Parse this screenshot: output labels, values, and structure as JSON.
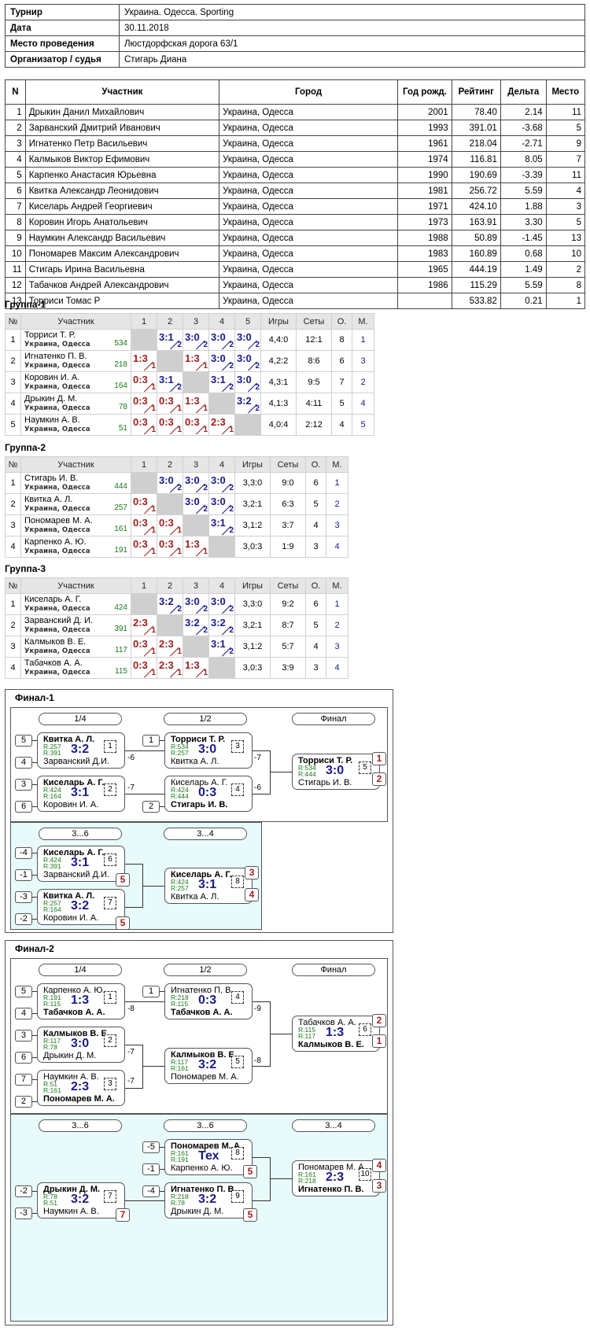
{
  "info": [
    {
      "k": "Турнир",
      "v": "Украина. Одесса. Sporting"
    },
    {
      "k": "Дата",
      "v": "30.11.2018"
    },
    {
      "k": "Место проведения",
      "v": "Люстдорфская дорога 63/1"
    },
    {
      "k": "Организатор / судья",
      "v": "Стигарь Диана"
    }
  ],
  "participants": {
    "headers": [
      "N",
      "Участник",
      "Город",
      "Год рожд.",
      "Рейтинг",
      "Дельта",
      "Место"
    ],
    "rows": [
      [
        "1",
        "Дрыкин Данил Михайлович",
        "Украина, Одесса",
        "2001",
        "78.40",
        "2.14",
        "11"
      ],
      [
        "2",
        "Зарванский Дмитрий Иванович",
        "Украина, Одесса",
        "1993",
        "391.01",
        "-3.68",
        "5"
      ],
      [
        "3",
        "Игнатенко Петр Васильевич",
        "Украина, Одесса",
        "1961",
        "218.04",
        "-2.71",
        "9"
      ],
      [
        "4",
        "Калмыков Виктор Ефимович",
        "Украина, Одесса",
        "1974",
        "116.81",
        "8.05",
        "7"
      ],
      [
        "5",
        "Карпенко Анастасия Юрьевна",
        "Украина, Одесса",
        "1990",
        "190.69",
        "-3.39",
        "11"
      ],
      [
        "6",
        "Квитка Александр Леонидович",
        "Украина, Одесса",
        "1981",
        "256.72",
        "5.59",
        "4"
      ],
      [
        "7",
        "Киселарь Андрей Георгиевич",
        "Украина, Одесса",
        "1971",
        "424.10",
        "1.88",
        "3"
      ],
      [
        "8",
        "Коровин Игорь Анатольевич",
        "Украина, Одесса",
        "1973",
        "163.91",
        "3.30",
        "5"
      ],
      [
        "9",
        "Наумкин Александр Васильевич",
        "Украина, Одесса",
        "1988",
        "50.89",
        "-1.45",
        "13"
      ],
      [
        "10",
        "Пономарев Максим Александрович",
        "Украина, Одесса",
        "1983",
        "160.89",
        "0.68",
        "10"
      ],
      [
        "11",
        "Стигарь Ирина Васильевна",
        "Украина, Одесса",
        "1965",
        "444.19",
        "1.49",
        "2"
      ],
      [
        "12",
        "Табачков Андрей Александрович",
        "Украина, Одесса",
        "1986",
        "115.29",
        "5.59",
        "8"
      ],
      [
        "13",
        "Торриси Томас Р",
        "Украина, Одесса",
        "",
        "533.82",
        "0.21",
        "1"
      ]
    ]
  },
  "groups": [
    {
      "title": "Группа-1",
      "headers": [
        "№",
        "Участник",
        "1",
        "2",
        "3",
        "4",
        "5",
        "Игры",
        "Сеты",
        "О.",
        "М."
      ],
      "rows": [
        {
          "n": "1",
          "name": "Торриси Т. Р.",
          "city": "Украина, Одесса",
          "rating": "534",
          "cells": [
            "x",
            "3:1|2|w",
            "3:0|2|w",
            "3:0|2|w",
            "3:0|2|w"
          ],
          "games": "4,4:0",
          "sets": "12:1",
          "pts": "8",
          "place": "1"
        },
        {
          "n": "2",
          "name": "Игнатенко П. В.",
          "city": "Украина, Одесса",
          "rating": "218",
          "cells": [
            "1:3|1|l",
            "x",
            "1:3|1|l",
            "3:0|2|w",
            "3:0|2|w"
          ],
          "games": "4,2:2",
          "sets": "8:6",
          "pts": "6",
          "place": "3"
        },
        {
          "n": "3",
          "name": "Коровин И. А.",
          "city": "Украина, Одесса",
          "rating": "164",
          "cells": [
            "0:3|1|l",
            "3:1|2|w",
            "x",
            "3:1|2|w",
            "3:0|2|w"
          ],
          "games": "4,3:1",
          "sets": "9:5",
          "pts": "7",
          "place": "2"
        },
        {
          "n": "4",
          "name": "Дрыкин Д. М.",
          "city": "Украина, Одесса",
          "rating": "78",
          "cells": [
            "0:3|1|l",
            "0:3|1|l",
            "1:3|1|l",
            "x",
            "3:2|2|w"
          ],
          "games": "4,1:3",
          "sets": "4:11",
          "pts": "5",
          "place": "4"
        },
        {
          "n": "5",
          "name": "Наумкин А. В.",
          "city": "Украина, Одесса",
          "rating": "51",
          "cells": [
            "0:3|1|l",
            "0:3|1|l",
            "0:3|1|l",
            "2:3|1|l",
            "x"
          ],
          "games": "4,0:4",
          "sets": "2:12",
          "pts": "4",
          "place": "5"
        }
      ]
    },
    {
      "title": "Группа-2",
      "headers": [
        "№",
        "Участник",
        "1",
        "2",
        "3",
        "4",
        "Игры",
        "Сеты",
        "О.",
        "М."
      ],
      "rows": [
        {
          "n": "1",
          "name": "Стигарь И. В.",
          "city": "Украина, Одесса",
          "rating": "444",
          "cells": [
            "x",
            "3:0|2|w",
            "3:0|2|w",
            "3:0|2|w"
          ],
          "games": "3,3:0",
          "sets": "9:0",
          "pts": "6",
          "place": "1"
        },
        {
          "n": "2",
          "name": "Квитка А. Л.",
          "city": "Украина, Одесса",
          "rating": "257",
          "cells": [
            "0:3|1|l",
            "x",
            "3:0|2|w",
            "3:0|2|w"
          ],
          "games": "3,2:1",
          "sets": "6:3",
          "pts": "5",
          "place": "2"
        },
        {
          "n": "3",
          "name": "Пономарев М. А.",
          "city": "Украина, Одесса",
          "rating": "161",
          "cells": [
            "0:3|1|l",
            "0:3|1|l",
            "x",
            "3:1|2|w"
          ],
          "games": "3,1:2",
          "sets": "3:7",
          "pts": "4",
          "place": "3"
        },
        {
          "n": "4",
          "name": "Карпенко А. Ю.",
          "city": "Украина, Одесса",
          "rating": "191",
          "cells": [
            "0:3|1|l",
            "0:3|1|l",
            "1:3|1|l",
            "x"
          ],
          "games": "3,0:3",
          "sets": "1:9",
          "pts": "3",
          "place": "4"
        }
      ]
    },
    {
      "title": "Группа-3",
      "headers": [
        "№",
        "Участник",
        "1",
        "2",
        "3",
        "4",
        "Игры",
        "Сеты",
        "О.",
        "М."
      ],
      "rows": [
        {
          "n": "1",
          "name": "Киселарь А. Г.",
          "city": "Украина, Одесса",
          "rating": "424",
          "cells": [
            "x",
            "3:2|2|w",
            "3:0|2|w",
            "3:0|2|w"
          ],
          "games": "3,3:0",
          "sets": "9:2",
          "pts": "6",
          "place": "1"
        },
        {
          "n": "2",
          "name": "Зарванский Д. И.",
          "city": "Украина, Одесса",
          "rating": "391",
          "cells": [
            "2:3|1|l",
            "x",
            "3:2|2|w",
            "3:2|2|w"
          ],
          "games": "3,2:1",
          "sets": "8:7",
          "pts": "5",
          "place": "2"
        },
        {
          "n": "3",
          "name": "Калмыков В. Е.",
          "city": "Украина, Одесса",
          "rating": "117",
          "cells": [
            "0:3|1|l",
            "2:3|1|l",
            "x",
            "3:1|2|w"
          ],
          "games": "3,1:2",
          "sets": "5:7",
          "pts": "4",
          "place": "3"
        },
        {
          "n": "4",
          "name": "Табачков А. А.",
          "city": "Украина, Одесса",
          "rating": "115",
          "cells": [
            "0:3|1|l",
            "2:3|1|l",
            "1:3|1|l",
            "x"
          ],
          "games": "3,0:3",
          "sets": "3:9",
          "pts": "3",
          "place": "4"
        }
      ]
    }
  ],
  "finals": [
    {
      "title": "Финал-1",
      "rounds_main": [
        "1/4",
        "1/2",
        "Финал"
      ],
      "rounds_cons": [
        "3...6",
        "3...4"
      ],
      "matches": [
        {
          "n1": "Квитка А. Л.",
          "b1": true,
          "r1": "R:257",
          "n2": "Зарванский Д.И.",
          "b2": false,
          "r2": "R:391",
          "score": "3:2",
          "num": "1"
        },
        {
          "n1": "Киселарь А. Г.",
          "b1": true,
          "r1": "R:424",
          "n2": "Коровин И. А.",
          "b2": false,
          "r2": "R:164",
          "score": "3:1",
          "num": "2"
        },
        {
          "n1": "Торриси Т. Р.",
          "b1": true,
          "r1": "R:534",
          "n2": "Квитка А. Л.",
          "b2": false,
          "r2": "R:257",
          "score": "3:0",
          "num": "3"
        },
        {
          "n1": "Киселарь А. Г.",
          "b1": false,
          "r1": "R:424",
          "n2": "Стигарь И. В.",
          "b2": true,
          "r2": "R:444",
          "score": "0:3",
          "num": "4"
        },
        {
          "n1": "Торриси Т. Р.",
          "b1": true,
          "r1": "R:534",
          "n2": "Стигарь И. В.",
          "b2": false,
          "r2": "R:444",
          "score": "3:0",
          "num": "5"
        },
        {
          "n1": "Киселарь А. Г.",
          "b1": true,
          "r1": "R:424",
          "n2": "Зарванский Д.И.",
          "b2": false,
          "r2": "R:391",
          "score": "3:1",
          "num": "6"
        },
        {
          "n1": "Квитка А. Л.",
          "b1": true,
          "r1": "R:257",
          "n2": "Коровин И. А.",
          "b2": false,
          "r2": "R:164",
          "score": "3:2",
          "num": "7"
        },
        {
          "n1": "Киселарь А. Г.",
          "b1": true,
          "r1": "R:424",
          "n2": "Квитка А. Л.",
          "b2": false,
          "r2": "R:257",
          "score": "3:1",
          "num": "8"
        }
      ],
      "seeds": [
        "5",
        "4",
        "3",
        "6",
        "1",
        "2",
        "-4",
        "-1",
        "-3",
        "-2"
      ],
      "losers": [
        "-6",
        "-7",
        "-7",
        "-6"
      ],
      "places": [
        "1",
        "2",
        "5",
        "5",
        "3",
        "4"
      ]
    },
    {
      "title": "Финал-2",
      "rounds_main": [
        "1/4",
        "1/2",
        "Финал"
      ],
      "rounds_cons": [
        "3...6",
        "3...6",
        "3...4"
      ],
      "matches": [
        {
          "n1": "Карпенко А. Ю.",
          "b1": false,
          "r1": "R:191",
          "n2": "Табачков А. А.",
          "b2": true,
          "r2": "R:115",
          "score": "1:3",
          "num": "1"
        },
        {
          "n1": "Калмыков В. Е.",
          "b1": true,
          "r1": "R:117",
          "n2": "Дрыкин Д. М.",
          "b2": false,
          "r2": "R:78",
          "score": "3:0",
          "num": "2"
        },
        {
          "n1": "Наумкин А. В.",
          "b1": false,
          "r1": "R:51",
          "n2": "Пономарев М. А.",
          "b2": true,
          "r2": "R:161",
          "score": "2:3",
          "num": "3"
        },
        {
          "n1": "Игнатенко П. В.",
          "b1": false,
          "r1": "R:218",
          "n2": "Табачков А. А.",
          "b2": true,
          "r2": "R:115",
          "score": "0:3",
          "num": "4"
        },
        {
          "n1": "Калмыков В. Е.",
          "b1": true,
          "r1": "R:117",
          "n2": "Пономарев М. А.",
          "b2": false,
          "r2": "R:161",
          "score": "3:2",
          "num": "5"
        },
        {
          "n1": "Табачков А. А.",
          "b1": false,
          "r1": "R:115",
          "n2": "Калмыков В. Е.",
          "b2": true,
          "r2": "R:117",
          "score": "1:3",
          "num": "6"
        },
        {
          "n1": "Пономарев М. А.",
          "b1": true,
          "r1": "R:161",
          "n2": "Карпенко А. Ю.",
          "b2": false,
          "r2": "R:191",
          "score": "Тех",
          "num": "8"
        },
        {
          "n1": "Дрыкин Д. М.",
          "b1": true,
          "r1": "R:78",
          "n2": "Наумкин А. В.",
          "b2": false,
          "r2": "R:51",
          "score": "3:2",
          "num": "7"
        },
        {
          "n1": "Игнатенко П. В.",
          "b1": true,
          "r1": "R:218",
          "n2": "Дрыкин Д. М.",
          "b2": false,
          "r2": "R:78",
          "score": "3:2",
          "num": "9"
        },
        {
          "n1": "Пономарев М. А.",
          "b1": false,
          "r1": "R:161",
          "n2": "Игнатенко П. В.",
          "b2": true,
          "r2": "R:218",
          "score": "2:3",
          "num": "10"
        }
      ],
      "seeds": [
        "5",
        "4",
        "3",
        "6",
        "7",
        "2",
        "1",
        "-5",
        "-1",
        "-4",
        "-2",
        "-3"
      ],
      "losers": [
        "-8",
        "-7",
        "-7",
        "-9",
        "-8"
      ],
      "places": [
        "2",
        "1",
        "5",
        "7",
        "5",
        "4",
        "3"
      ]
    }
  ]
}
